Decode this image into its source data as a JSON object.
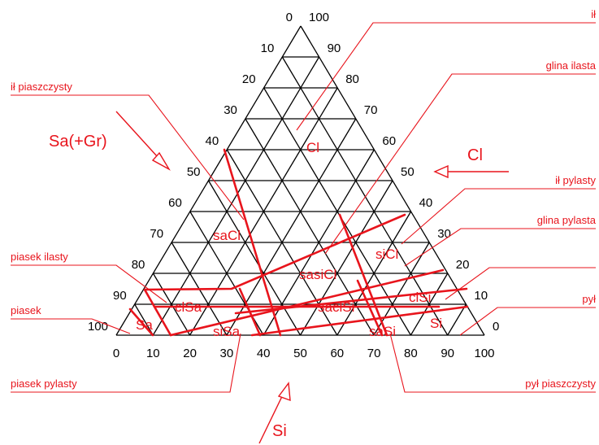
{
  "colors": {
    "grid": "#000000",
    "accent": "#e8141c",
    "background": "#ffffff"
  },
  "left_ticks": [
    "0",
    "10",
    "20",
    "30",
    "40",
    "50",
    "60",
    "70",
    "80",
    "90",
    "100"
  ],
  "right_ticks": [
    "100",
    "90",
    "80",
    "70",
    "60",
    "50",
    "40",
    "30",
    "20",
    "10",
    "0"
  ],
  "bottom_ticks": [
    "0",
    "10",
    "20",
    "30",
    "40",
    "50",
    "60",
    "70",
    "80",
    "90",
    "100"
  ],
  "axis_arrows": {
    "left": "Sa(+Gr)",
    "right": "Cl",
    "bottom": "Si"
  },
  "regions": {
    "Cl": "Cl",
    "saCl": "saCl",
    "siCl": "siCl",
    "sasiCl": "sasiCl",
    "clSa": "clSa",
    "saclSi": "saclSi",
    "clSi": "clSi",
    "Sa": "Sa",
    "siSa": "siSa",
    "saSi": "saSi",
    "Si": "Si"
  },
  "callouts": {
    "il": "ił",
    "glina_ilasta": "glina ilasta",
    "il_piaszczysty": "ił piaszczysty",
    "il_pylasty": "ił pylasty",
    "glina_pylasta": "glina pylasta",
    "piasek_ilasty": "piasek ilasty",
    "piasek": "piasek",
    "pyl": "pył",
    "piasek_pylasty": "piasek pylasty",
    "pyl_piaszczysty": "pył piaszczysty"
  }
}
